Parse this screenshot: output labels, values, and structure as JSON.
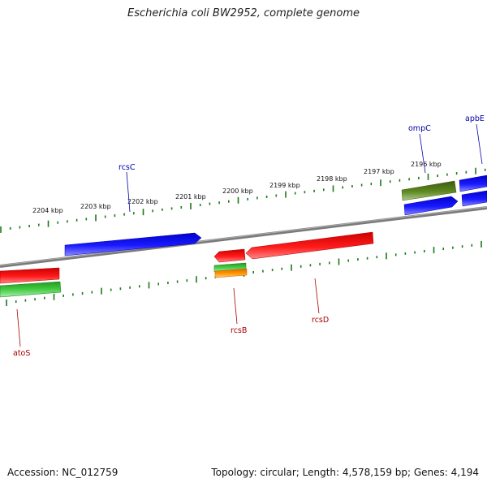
{
  "title": "Escherichia coli BW2952, complete genome",
  "footer": {
    "accession": "Accession: NC_012759",
    "summary": "Topology: circular; Length: 4,578,159 bp; Genes: 4,194"
  },
  "colors": {
    "backbone": "#808080",
    "tick": "#1a7a1a",
    "forward_gene": "#0000ee",
    "reverse_gene": "#ee0000",
    "green_gene": "#33bb33",
    "olive_gene": "#557a1a",
    "orange_gene": "#ff8800",
    "forward_label": "#0000aa",
    "reverse_label": "#aa0000"
  },
  "scale_labels": [
    "2204 kbp",
    "2203 kbp",
    "2202 kbp",
    "2201 kbp",
    "2200 kbp",
    "2199 kbp",
    "2198 kbp",
    "2197 kbp",
    "2196 kbp"
  ],
  "gene_labels": {
    "rcsC": "rcsC",
    "ompC": "ompC",
    "apbE": "apbE",
    "atoS": "atoS",
    "rcsB": "rcsB",
    "rcsD": "rcsD"
  }
}
